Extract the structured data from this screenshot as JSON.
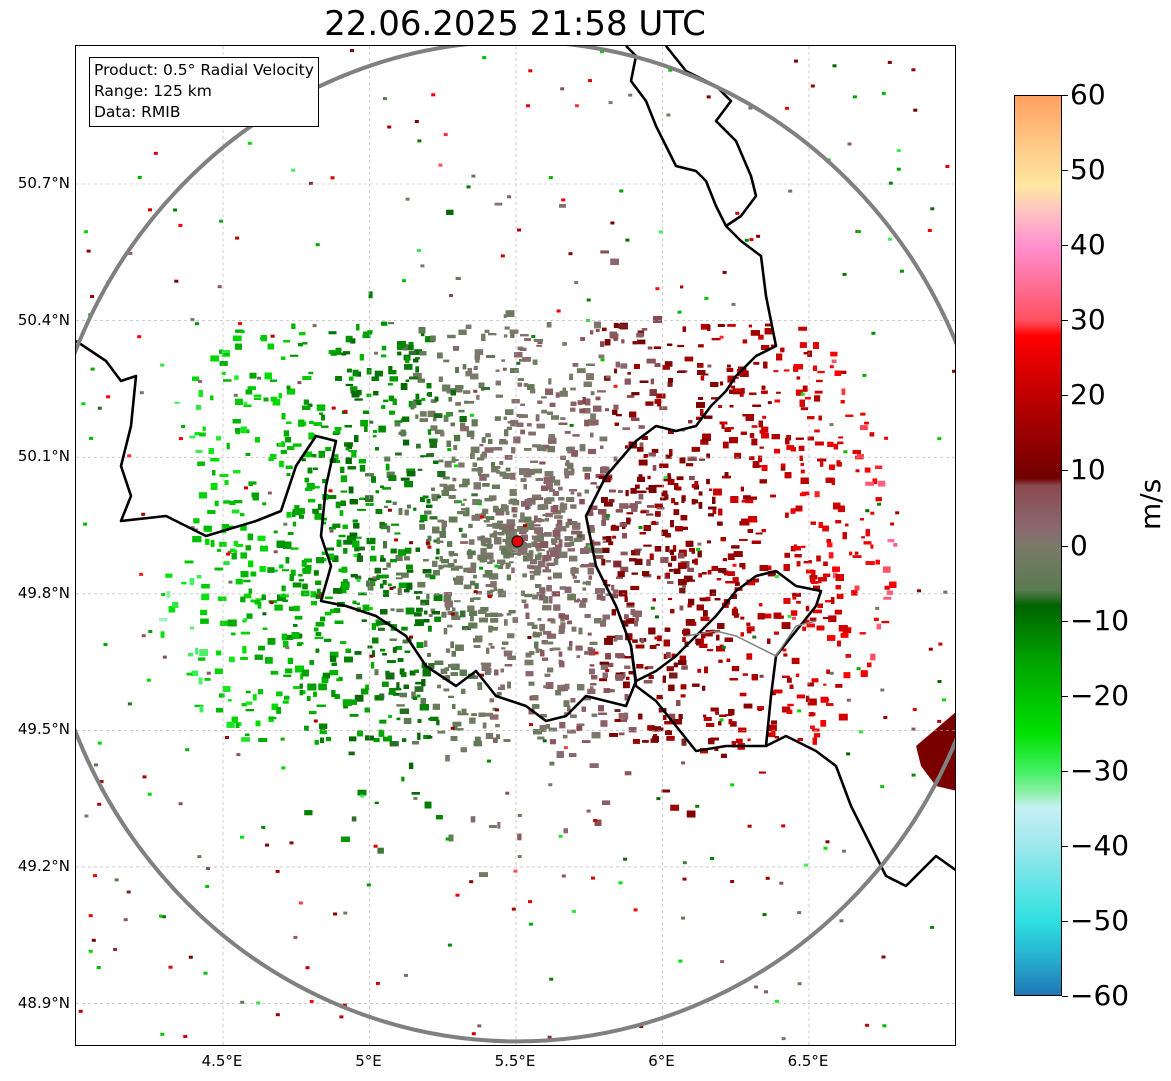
{
  "title": "22.06.2025 21:58 UTC",
  "info_box": {
    "product": "Product: 0.5° Radial Velocity",
    "range": "Range: 125 km",
    "source": "Data: RMIB"
  },
  "map": {
    "lon_range": [
      4.0,
      7.0
    ],
    "lat_range": [
      48.8,
      51.0
    ],
    "radar_site": {
      "lon": 5.505,
      "lat": 49.915
    },
    "range_ring_km": 125,
    "lon_ticks": [
      {
        "value": 4.5,
        "label": "4.5°E"
      },
      {
        "value": 5.0,
        "label": "5°E"
      },
      {
        "value": 5.5,
        "label": "5.5°E"
      },
      {
        "value": 6.0,
        "label": "6°E"
      },
      {
        "value": 6.5,
        "label": "6.5°E"
      }
    ],
    "lat_ticks": [
      {
        "value": 50.7,
        "label": "50.7°N"
      },
      {
        "value": 50.4,
        "label": "50.4°N"
      },
      {
        "value": 50.1,
        "label": "50.1°N"
      },
      {
        "value": 49.8,
        "label": "49.8°N"
      },
      {
        "value": 49.5,
        "label": "49.5°N"
      },
      {
        "value": 49.2,
        "label": "49.2°N"
      },
      {
        "value": 48.9,
        "label": "48.9°N"
      }
    ],
    "colors": {
      "ring": "#808080",
      "border": "#000000",
      "grid": "#b0b0b0",
      "radar_marker": "#e00000"
    }
  },
  "colorbar": {
    "unit": "m/s",
    "min": -60,
    "max": 60,
    "ticks": [
      {
        "value": 60,
        "label": "60"
      },
      {
        "value": 50,
        "label": "50"
      },
      {
        "value": 40,
        "label": "40"
      },
      {
        "value": 30,
        "label": "30"
      },
      {
        "value": 20,
        "label": "20"
      },
      {
        "value": 10,
        "label": "10"
      },
      {
        "value": 0,
        "label": "0"
      },
      {
        "value": -10,
        "label": "−10"
      },
      {
        "value": -20,
        "label": "−20"
      },
      {
        "value": -30,
        "label": "−30"
      },
      {
        "value": -40,
        "label": "−40"
      },
      {
        "value": -50,
        "label": "−50"
      },
      {
        "value": -60,
        "label": "−60"
      }
    ],
    "stops": [
      {
        "value": -60,
        "color": "#1f77b4"
      },
      {
        "value": -55,
        "color": "#27b0d0"
      },
      {
        "value": -50,
        "color": "#2fe0e0"
      },
      {
        "value": -40,
        "color": "#9ee8ec"
      },
      {
        "value": -35,
        "color": "#c6f0f4"
      },
      {
        "value": -33,
        "color": "#8ef0a8"
      },
      {
        "value": -30,
        "color": "#40f060"
      },
      {
        "value": -25,
        "color": "#00e000"
      },
      {
        "value": -15,
        "color": "#00a000"
      },
      {
        "value": -8,
        "color": "#006400"
      },
      {
        "value": -6,
        "color": "#5a7a50"
      },
      {
        "value": 0,
        "color": "#7a7a6a"
      },
      {
        "value": 2,
        "color": "#8a6a70"
      },
      {
        "value": 8,
        "color": "#8a4a50"
      },
      {
        "value": 9,
        "color": "#700000"
      },
      {
        "value": 18,
        "color": "#b00000"
      },
      {
        "value": 28,
        "color": "#ff0000"
      },
      {
        "value": 30,
        "color": "#ff5060"
      },
      {
        "value": 40,
        "color": "#ff90d0"
      },
      {
        "value": 45,
        "color": "#ffc8c0"
      },
      {
        "value": 48,
        "color": "#ffe8a0"
      },
      {
        "value": 55,
        "color": "#ffc080"
      },
      {
        "value": 60,
        "color": "#ffa060"
      }
    ]
  }
}
